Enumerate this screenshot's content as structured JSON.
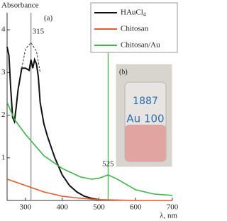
{
  "chart_data": {
    "type": "line",
    "y_label": "Absorbance",
    "x_label": "λ, nm",
    "panel_label": "(a)",
    "xlim": [
      250,
      700
    ],
    "xticks": [
      300,
      400,
      500,
      600,
      700
    ],
    "ylim": [
      0,
      4.4
    ],
    "yticks": [
      1,
      2,
      3,
      4
    ],
    "markers": [
      315,
      525
    ],
    "marker_colors": [
      "#888888",
      "#3cb44b"
    ],
    "series": [
      {
        "name": "HAuCl4",
        "color": "#111111",
        "x": [
          250,
          255,
          260,
          265,
          270,
          275,
          280,
          290,
          300,
          310,
          315,
          320,
          325,
          330,
          335,
          340,
          350,
          360,
          370,
          380,
          390,
          400,
          420,
          440,
          460,
          480,
          500
        ],
        "values": [
          3.6,
          3.4,
          2.6,
          1.95,
          1.85,
          2.2,
          2.6,
          3.1,
          3.1,
          3.05,
          3.3,
          3.1,
          3.3,
          3.2,
          2.9,
          2.3,
          1.8,
          1.5,
          1.25,
          1.0,
          0.8,
          0.6,
          0.35,
          0.2,
          0.1,
          0.05,
          0.02
        ]
      },
      {
        "name": "Chitosan",
        "color": "#e8582a",
        "x": [
          250,
          300,
          350,
          400,
          450,
          500,
          550,
          600,
          700
        ],
        "values": [
          0.5,
          0.35,
          0.2,
          0.1,
          0.05,
          0.02,
          0.01,
          0.0,
          0.0
        ]
      },
      {
        "name": "Chitosan/Au",
        "color": "#3cb44b",
        "x": [
          250,
          270,
          300,
          350,
          400,
          450,
          480,
          500,
          525,
          550,
          600,
          650,
          700
        ],
        "values": [
          2.3,
          1.9,
          1.55,
          1.05,
          0.75,
          0.55,
          0.5,
          0.52,
          0.6,
          0.5,
          0.25,
          0.15,
          0.12
        ]
      }
    ],
    "peak_outline": {
      "x": [
        290,
        300,
        315,
        330,
        340
      ],
      "values": [
        3.1,
        3.55,
        3.7,
        3.5,
        3.0
      ]
    },
    "inset": {
      "label": "(b)",
      "handwriting": [
        "1887",
        "Au 100"
      ]
    }
  }
}
